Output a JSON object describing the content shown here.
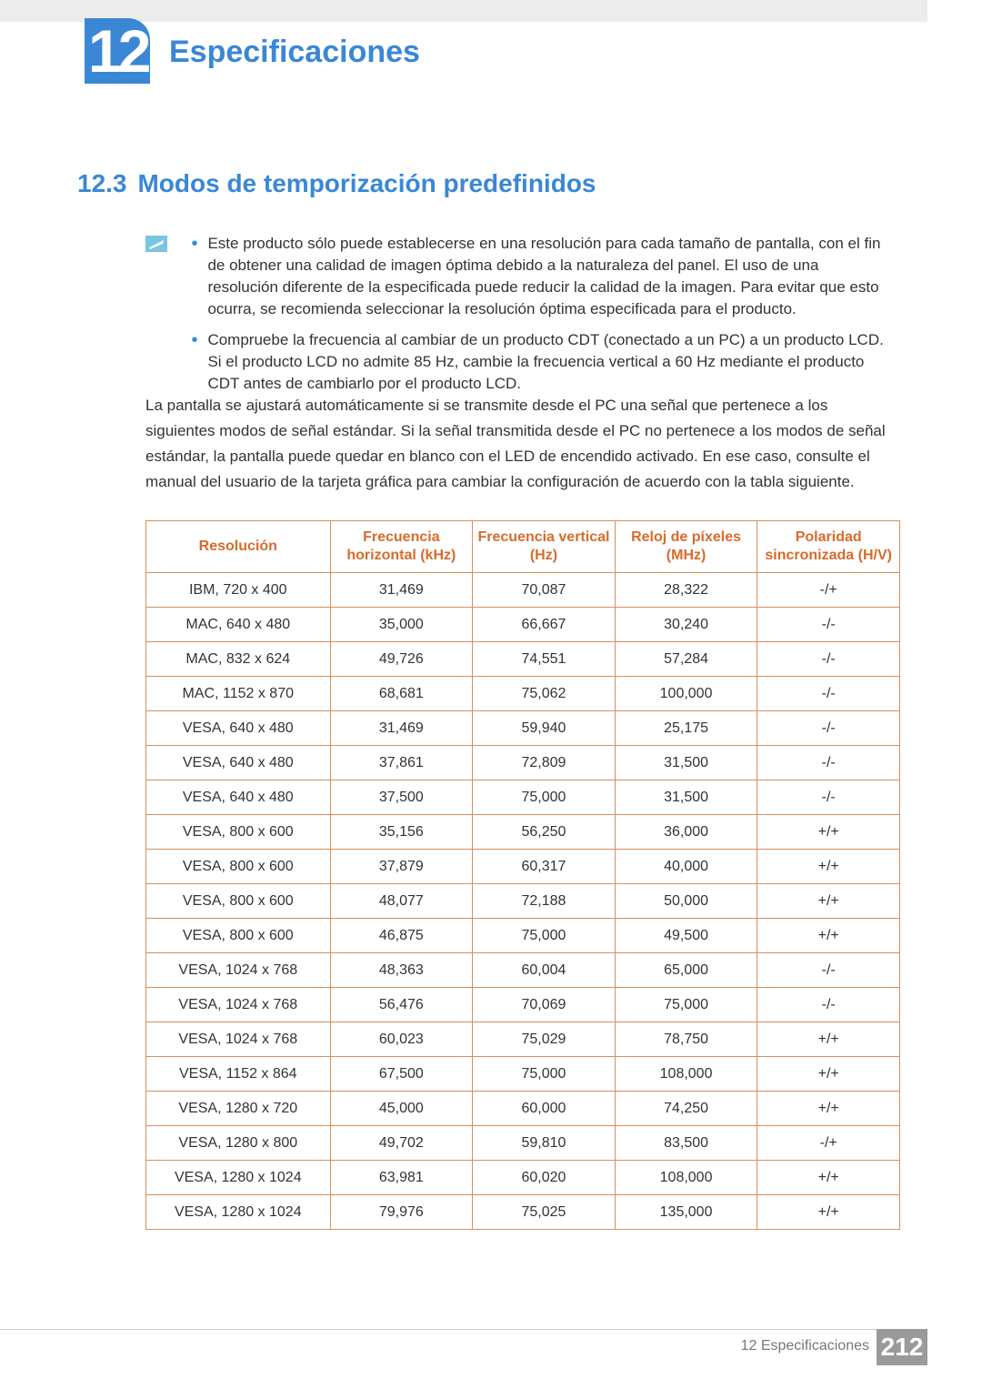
{
  "chapter": {
    "num": "12",
    "title": "Especificaciones"
  },
  "section": {
    "num": "12.3",
    "title": "Modos de temporización predefinidos"
  },
  "notes": [
    "Este producto sólo puede establecerse en una resolución para cada tamaño de pantalla, con el fin de obtener una calidad de imagen óptima debido a la naturaleza del panel. El uso de una resolución diferente de la especificada puede reducir la calidad de la imagen. Para evitar que esto ocurra, se recomienda seleccionar la resolución óptima especificada para el producto.",
    "Compruebe la frecuencia al cambiar de un producto CDT (conectado a un PC) a un producto LCD. Si el producto LCD no admite 85 Hz, cambie la frecuencia vertical a 60 Hz mediante el producto CDT antes de cambiarlo por el producto LCD."
  ],
  "body_paragraph": "La pantalla se ajustará automáticamente si se transmite desde el PC una señal que pertenece a los siguientes modos de señal estándar. Si la señal transmitida desde el PC no pertenece a los modos de señal estándar, la pantalla puede quedar en blanco con el LED de encendido activado. En ese caso, consulte el manual del usuario de la tarjeta gráfica para cambiar la configuración de acuerdo con la tabla siguiente.",
  "table": {
    "headers": [
      "Resolución",
      "Frecuencia horizontal (kHz)",
      "Frecuencia vertical (Hz)",
      "Reloj de píxeles (MHz)",
      "Polaridad sincronizada (H/V)"
    ],
    "rows": [
      [
        "IBM, 720 x 400",
        "31,469",
        "70,087",
        "28,322",
        "-/+"
      ],
      [
        "MAC, 640 x 480",
        "35,000",
        "66,667",
        "30,240",
        "-/-"
      ],
      [
        "MAC, 832 x 624",
        "49,726",
        "74,551",
        "57,284",
        "-/-"
      ],
      [
        "MAC, 1152 x 870",
        "68,681",
        "75,062",
        "100,000",
        "-/-"
      ],
      [
        "VESA, 640 x 480",
        "31,469",
        "59,940",
        "25,175",
        "-/-"
      ],
      [
        "VESA, 640 x 480",
        "37,861",
        "72,809",
        "31,500",
        "-/-"
      ],
      [
        "VESA, 640 x 480",
        "37,500",
        "75,000",
        "31,500",
        "-/-"
      ],
      [
        "VESA, 800 x 600",
        "35,156",
        "56,250",
        "36,000",
        "+/+"
      ],
      [
        "VESA, 800 x 600",
        "37,879",
        "60,317",
        "40,000",
        "+/+"
      ],
      [
        "VESA, 800 x 600",
        "48,077",
        "72,188",
        "50,000",
        "+/+"
      ],
      [
        "VESA, 800 x 600",
        "46,875",
        "75,000",
        "49,500",
        "+/+"
      ],
      [
        "VESA, 1024 x 768",
        "48,363",
        "60,004",
        "65,000",
        "-/-"
      ],
      [
        "VESA, 1024 x 768",
        "56,476",
        "70,069",
        "75,000",
        "-/-"
      ],
      [
        "VESA, 1024 x 768",
        "60,023",
        "75,029",
        "78,750",
        "+/+"
      ],
      [
        "VESA, 1152 x 864",
        "67,500",
        "75,000",
        "108,000",
        "+/+"
      ],
      [
        "VESA, 1280 x 720",
        "45,000",
        "60,000",
        "74,250",
        "+/+"
      ],
      [
        "VESA, 1280 x 800",
        "49,702",
        "59,810",
        "83,500",
        "-/+"
      ],
      [
        "VESA, 1280 x 1024",
        "63,981",
        "60,020",
        "108,000",
        "+/+"
      ],
      [
        "VESA, 1280 x 1024",
        "79,976",
        "75,025",
        "135,000",
        "+/+"
      ]
    ],
    "header_color": "#d86b2a",
    "border_color": "#d98f5a"
  },
  "footer": {
    "text": "12 Especificaciones",
    "page": "212"
  },
  "accent_color": "#3a87d6"
}
